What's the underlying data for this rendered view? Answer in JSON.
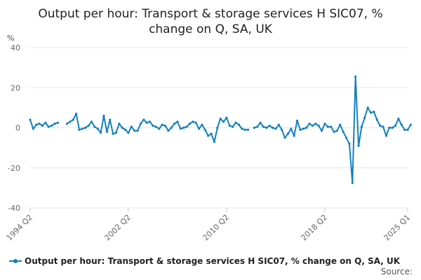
{
  "chart_data": {
    "type": "line",
    "title": "Output per hour: Transport & storage services H SIC07, % change on Q, SA, UK",
    "title_lines": [
      "Output per hour: Transport & storage services H SIC07, %",
      "change on Q, SA, UK"
    ],
    "ylabel": "%",
    "ylim": [
      -40,
      40
    ],
    "yticks": [
      40,
      20,
      0,
      -20,
      -40
    ],
    "x_start": "1994 Q2",
    "x_end": "2025 Q1",
    "xticks": [
      "1994 Q2",
      "2002 Q2",
      "2010 Q2",
      "2018 Q2",
      "2025 Q1"
    ],
    "grid": true,
    "legend_position": "bottom",
    "series": [
      {
        "name": "Output per hour: Transport & storage services H SIC07, % change on Q, SA, UK",
        "color": "#1380c0",
        "segments": [
          {
            "start": "1994 Q2",
            "values": [
              4.0,
              -0.5,
              1.5,
              2.0,
              1.0,
              2.5,
              0.5,
              1.0,
              2.0,
              2.5
            ]
          },
          {
            "start": "1997 Q2",
            "values": [
              2.0,
              3.0,
              4.0,
              7.0,
              -1.0,
              -0.5,
              0.0,
              1.0,
              3.0,
              0.5,
              -0.5,
              -2.5,
              6.0,
              -2.0,
              4.0,
              -3.0,
              -2.5,
              2.0,
              0.0,
              -1.0,
              -2.5,
              0.5,
              -1.5,
              -1.5,
              2.0,
              4.0,
              2.5,
              3.0,
              1.0,
              0.5,
              -0.5,
              1.5,
              1.0,
              -1.5,
              0.0,
              2.0,
              3.0,
              -0.5,
              0.0,
              0.5,
              2.0,
              3.0,
              2.5,
              -0.5,
              1.5,
              -1.0,
              -4.0,
              -3.0,
              -7.0,
              0.0,
              4.5,
              3.0,
              5.0,
              1.0,
              0.5,
              2.5,
              1.5,
              -0.5,
              -1.0,
              -1.0
            ]
          },
          {
            "start": "2012 Q3",
            "values": [
              0.0,
              0.5,
              2.5,
              0.5,
              0.0,
              1.0,
              0.0,
              -0.5,
              1.5,
              -1.0,
              -5.0,
              -3.0,
              -0.5,
              -4.0,
              3.5,
              -1.0,
              -0.5,
              0.0,
              2.0,
              1.0,
              2.0,
              1.0,
              -1.5,
              2.0,
              0.5,
              0.5,
              -2.0,
              -1.5,
              1.5,
              -2.0,
              -5.0,
              -8.0,
              -27.5,
              25.5,
              -9.0,
              0.5,
              5.0,
              10.0,
              7.5,
              8.0,
              4.0,
              1.0,
              0.5,
              -4.0,
              0.0,
              0.0,
              1.0,
              4.5,
              1.5,
              -1.0,
              -1.0,
              1.5
            ]
          }
        ]
      }
    ],
    "legend_label": "Output per hour: Transport & storage services H SIC07, % change on Q, SA, UK",
    "source_label": "Source:"
  }
}
